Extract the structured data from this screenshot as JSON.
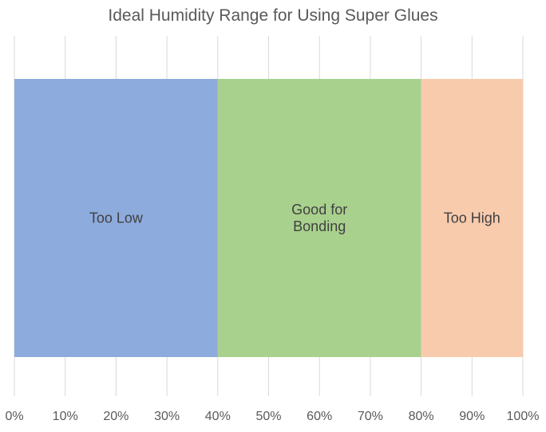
{
  "chart_data": {
    "type": "bar",
    "orientation": "horizontal",
    "stacked": true,
    "title": "Ideal Humidity Range for Using Super Glues",
    "xlabel": "",
    "ylabel": "",
    "xlim": [
      0,
      100
    ],
    "x_ticks": [
      "0%",
      "10%",
      "20%",
      "30%",
      "40%",
      "50%",
      "60%",
      "70%",
      "80%",
      "90%",
      "100%"
    ],
    "x_tick_values": [
      0,
      10,
      20,
      30,
      40,
      50,
      60,
      70,
      80,
      90,
      100
    ],
    "grid": true,
    "legend": "none",
    "segments": [
      {
        "label": "Too Low",
        "start": 0,
        "end": 40,
        "value": 40,
        "color": "#8eabdd"
      },
      {
        "label": "Good for\nBonding",
        "start": 40,
        "end": 80,
        "value": 40,
        "color": "#a9d18e"
      },
      {
        "label": "Too High",
        "start": 80,
        "end": 100,
        "value": 20,
        "color": "#f8cbad"
      }
    ]
  }
}
